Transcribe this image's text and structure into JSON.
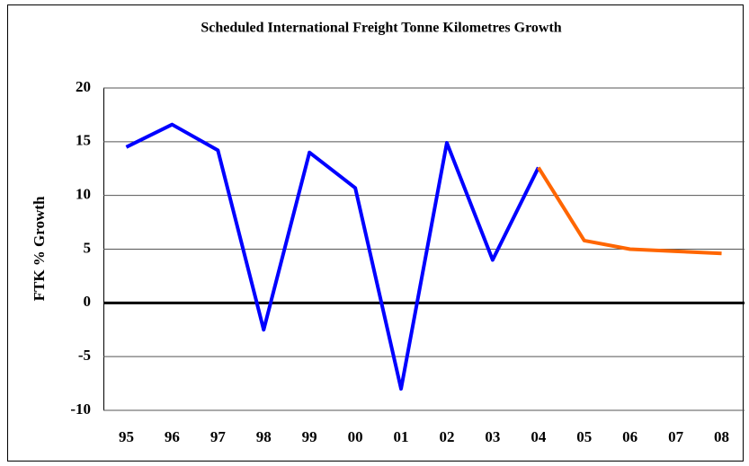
{
  "chart_data": {
    "type": "line",
    "title": "Scheduled International Freight Tonne Kilometres Growth",
    "y_label": "FTK % Growth",
    "categories": [
      "95",
      "96",
      "97",
      "98",
      "99",
      "00",
      "01",
      "02",
      "03",
      "04",
      "05",
      "06",
      "07",
      "08"
    ],
    "series": [
      {
        "color": "#0000ff",
        "values": [
          14.5,
          16.6,
          14.2,
          -2.5,
          14.0,
          10.7,
          -8.0,
          14.9,
          4.0,
          12.6,
          null,
          null,
          null,
          null
        ]
      },
      {
        "color": "#ff6600",
        "values": [
          null,
          null,
          null,
          null,
          null,
          null,
          null,
          null,
          null,
          12.6,
          5.8,
          5.0,
          4.8,
          4.6
        ]
      }
    ],
    "ylim": [
      -10,
      20
    ],
    "yticks": [
      -10,
      -5,
      0,
      5,
      10,
      15,
      20
    ],
    "grid": true
  }
}
